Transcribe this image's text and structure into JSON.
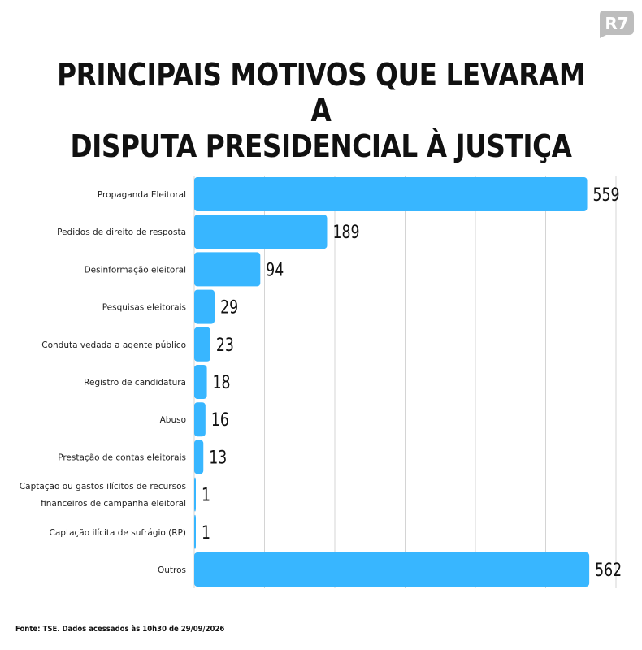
{
  "logo_text": "R7",
  "title_lines": [
    "PRINCIPAIS MOTIVOS QUE LEVARAM A",
    "DISPUTA PRESIDENCIAL À JUSTIÇA"
  ],
  "source": "Fonte: TSE. Dados acessados às 10h30 de 29/09/2026",
  "colors": {
    "bar": "#38b6ff",
    "grid": "#d4d4d4",
    "logo": "#bdbdbd"
  },
  "chart_data": {
    "type": "bar",
    "orientation": "horizontal",
    "categories": [
      [
        "Propaganda Eleitoral"
      ],
      [
        "Pedidos de direito de resposta"
      ],
      [
        "Desinformação eleitoral"
      ],
      [
        "Pesquisas eleitorais"
      ],
      [
        "Conduta vedada a agente público"
      ],
      [
        "Registro de candidatura"
      ],
      [
        "Abuso"
      ],
      [
        "Prestação de contas eleitorais"
      ],
      [
        "Captação ou gastos ilícitos de recursos",
        "financeiros de campanha eleitoral"
      ],
      [
        "Captação ilícita de sufrágio (RP)"
      ],
      [
        "Outros"
      ]
    ],
    "values": [
      559,
      189,
      94,
      29,
      23,
      18,
      16,
      13,
      1,
      1,
      562
    ],
    "xlim": [
      0,
      600
    ],
    "grid": true
  }
}
